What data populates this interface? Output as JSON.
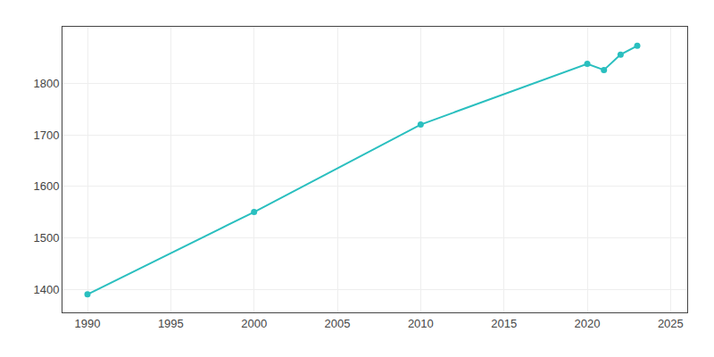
{
  "chart_data": {
    "type": "line",
    "x": [
      1990,
      2000,
      2010,
      2020,
      2021,
      2022,
      2023
    ],
    "values": [
      1390,
      1550,
      1720,
      1838,
      1826,
      1856,
      1873
    ],
    "color": "#2abfbf",
    "marker": "circle",
    "xlim": [
      1988.5,
      2026
    ],
    "ylim": [
      1355,
      1910
    ],
    "xticks": [
      1990,
      1995,
      2000,
      2005,
      2010,
      2015,
      2020,
      2025
    ],
    "yticks": [
      1400,
      1500,
      1600,
      1700,
      1800
    ],
    "grid": true
  }
}
